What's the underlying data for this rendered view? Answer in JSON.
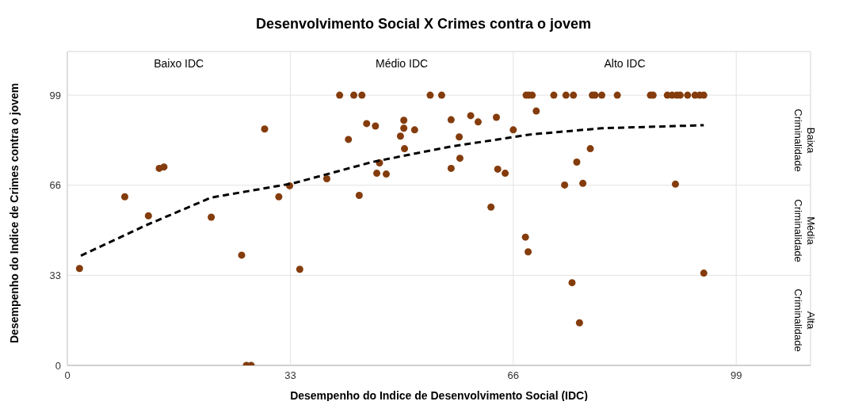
{
  "chart_data": {
    "type": "scatter",
    "title": "Desenvolvimento Social X Crimes contra o jovem",
    "xlabel": "Desempenho do Indice de Desenvolvimento Social (IDC)",
    "ylabel": "Desempenho do Indice de Crimes contra o jovem",
    "annotations": [
      "Baixo IDC",
      "Médio IDC",
      "Alto IDC",
      "Baixa Criminalidade",
      "Média Criminalidade",
      "Alta Criminalidade"
    ],
    "xlim": [
      0,
      110
    ],
    "xticks": [
      0,
      33,
      66,
      99
    ],
    "ylim": [
      0,
      115
    ],
    "yticks": [
      0,
      33,
      66,
      99
    ],
    "grid": true,
    "marker": "circle",
    "series": [
      {
        "color": "#843c0c",
        "x": [
          1.8,
          8.5,
          12,
          13.6,
          14.3,
          21.3,
          25.8,
          26.5,
          27.2,
          29.2,
          31.3,
          32.9,
          34.4,
          38.4,
          40.3,
          41.6,
          42.4,
          43.6,
          43.2,
          44.3,
          45.6,
          45.8,
          46.2,
          47.2,
          49.3,
          49.8,
          49.8,
          49.9,
          51.4,
          53.7,
          55.4,
          56.8,
          56.8,
          58.0,
          58.1,
          59.7,
          60.8,
          62.7,
          63.5,
          63.7,
          64.8,
          66.0,
          67.8,
          68.2,
          67.9,
          68.3,
          68.8,
          69.4,
          72.0,
          73.8,
          74.9,
          77.7,
          78.1,
          79.1,
          81.4,
          86.3,
          86.7,
          88.8,
          89.5,
          90.2,
          90.7,
          91.8,
          92.9,
          93.6,
          94.2,
          73.6,
          76.3,
          75.4,
          77.4,
          90.0,
          94.2,
          74.7,
          75.8
        ],
        "values": [
          35.5,
          61.8,
          54.8,
          72.2,
          72.7,
          54.3,
          40.4,
          0,
          0,
          86.6,
          61.8,
          65.8,
          35.2,
          68.4,
          99,
          82.8,
          99,
          99,
          62.3,
          88.6,
          87.7,
          70.4,
          74.2,
          70.1,
          84.0,
          89.8,
          86.9,
          79.4,
          86.3,
          99,
          99,
          72.2,
          90,
          83.7,
          75.9,
          91.5,
          89.2,
          58.0,
          90.9,
          71.9,
          70.4,
          86.3,
          47.0,
          41.6,
          99,
          99,
          99,
          93.2,
          99,
          99,
          99,
          99,
          99,
          99,
          99,
          99,
          99,
          99,
          99,
          99,
          99,
          99,
          99,
          99,
          99,
          66.1,
          66.7,
          74.5,
          79.4,
          66.4,
          33.8,
          30.3,
          15.6
        ]
      },
      {
        "type": "line",
        "color": "#000000",
        "line_style": "dashed",
        "marker": "none",
        "x": [
          2,
          11.7,
          21.3,
          33.4,
          45.1,
          56.8,
          68.5,
          79.1,
          94.2
        ],
        "values": [
          40.2,
          51.4,
          61.5,
          66.7,
          74.5,
          80.2,
          84.6,
          86.9,
          88.0
        ]
      }
    ]
  }
}
